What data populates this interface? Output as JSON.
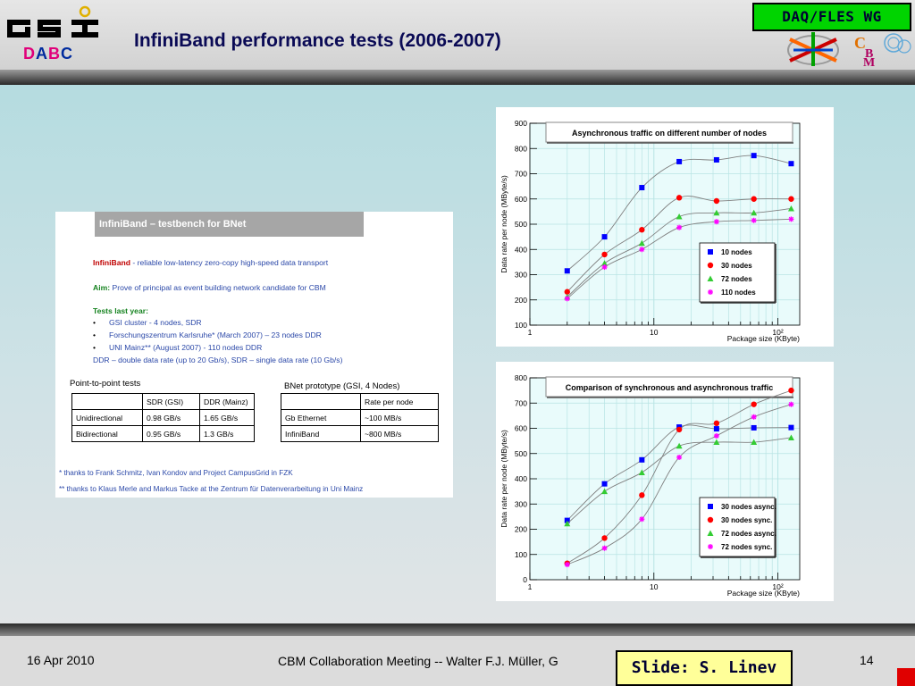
{
  "header": {
    "logo_text": "GSI",
    "dabc": [
      "D",
      "A",
      "B",
      "C"
    ],
    "title": "InfiniBand performance tests (2006-2007)",
    "badge": "DAQ/FLES WG",
    "cbm_logo_text": "CBM"
  },
  "colors": {
    "title": "#0a0a55",
    "badge_bg": "#00d400",
    "dabc_d": "#e0007a",
    "dabc_a": "#002b9e",
    "dabc_b": "#e0007a",
    "dabc_c": "#002b9e",
    "series_blue": "#0000ff",
    "series_red": "#ff0000",
    "series_green": "#33cc33",
    "series_magenta": "#ff00ff"
  },
  "panel": {
    "title": "InfiniBand – testbench for BNet",
    "lines": [
      {
        "lead": "InfiniBand",
        "text": " - reliable low-latency zero-copy high-speed data transport"
      },
      {
        "lead": "Aim:",
        "text": " Prove of principal as event building network candidate for CBM"
      },
      {
        "lead": "Tests last year:",
        "text": ""
      }
    ],
    "bullets": [
      "GSI cluster - 4 nodes, SDR",
      "Forschungszentrum Karlsruhe* (March 2007) – 23 nodes DDR",
      "UNI Mainz** (August 2007) - 110 nodes DDR"
    ],
    "ddr_note": "DDR – double data rate (up to 20 Gb/s), SDR – single data rate (10 Gb/s)",
    "p2p": {
      "title": "Point-to-point tests",
      "headers": [
        "",
        "SDR (GSI)",
        "DDR (Mainz)"
      ],
      "rows": [
        [
          "Unidirectional",
          "0.98 GB/s",
          "1.65 GB/s"
        ],
        [
          "Bidirectional",
          "0.95 GB/s",
          "1.3 GB/s"
        ]
      ]
    },
    "bnet": {
      "title": "BNet prototype (GSI, 4 Nodes)",
      "headers": [
        "",
        "Rate per node"
      ],
      "rows": [
        [
          "Gb Ethernet",
          "~100 MB/s"
        ],
        [
          "InfiniBand",
          "~800 MB/s"
        ]
      ]
    },
    "footnotes": [
      "* thanks to Frank Schmitz, Ivan Kondov and Project CampusGrid in FZK",
      "** thanks to Klaus Merle and Markus Tacke at the Zentrum für Datenverarbeitung in Uni Mainz"
    ]
  },
  "chart_data": [
    {
      "type": "line",
      "title": "Asynchronous traffic on different number of nodes",
      "xlabel": "Package size (KByte)",
      "ylabel": "Data rate per node (MByte/s)",
      "xscale": "log",
      "xlim": [
        1,
        150
      ],
      "ylim": [
        100,
        900
      ],
      "yticks": [
        100,
        200,
        300,
        400,
        500,
        600,
        700,
        800,
        900
      ],
      "xticks": [
        "1",
        "10",
        "10²"
      ],
      "grid": true,
      "legend_position": "bottom-right",
      "x": [
        2,
        4,
        8,
        16,
        32,
        64,
        128
      ],
      "series": [
        {
          "name": "10 nodes",
          "marker": "square",
          "color": "#0000ff",
          "values": [
            315,
            450,
            645,
            748,
            755,
            772,
            740
          ]
        },
        {
          "name": "30 nodes",
          "marker": "circle",
          "color": "#ff0000",
          "values": [
            232,
            380,
            478,
            605,
            592,
            600,
            600
          ]
        },
        {
          "name": "72 nodes",
          "marker": "triangle",
          "color": "#33cc33",
          "values": [
            212,
            345,
            425,
            530,
            545,
            545,
            562
          ]
        },
        {
          "name": "110 nodes",
          "marker": "star",
          "color": "#ff00ff",
          "values": [
            205,
            330,
            400,
            487,
            510,
            515,
            520
          ]
        }
      ]
    },
    {
      "type": "line",
      "title": "Comparison of synchronous and asynchronous traffic",
      "xlabel": "Package size (KByte)",
      "ylabel": "Data rate per node (MByte/s)",
      "xscale": "log",
      "xlim": [
        1,
        150
      ],
      "ylim": [
        0,
        800
      ],
      "yticks": [
        0,
        100,
        200,
        300,
        400,
        500,
        600,
        700,
        800
      ],
      "xticks": [
        "1",
        "10",
        "10²"
      ],
      "grid": true,
      "legend_position": "bottom-right",
      "x": [
        2,
        4,
        8,
        16,
        32,
        64,
        128
      ],
      "series": [
        {
          "name": "30 nodes async.",
          "marker": "square",
          "color": "#0000ff",
          "values": [
            235,
            380,
            475,
            605,
            598,
            602,
            603
          ]
        },
        {
          "name": "30 nodes sync.",
          "marker": "circle",
          "color": "#ff0000",
          "values": [
            65,
            165,
            335,
            595,
            620,
            695,
            750
          ]
        },
        {
          "name": "72 nodes async.",
          "marker": "triangle",
          "color": "#33cc33",
          "values": [
            222,
            350,
            425,
            530,
            545,
            545,
            563
          ]
        },
        {
          "name": "72 nodes sync.",
          "marker": "star",
          "color": "#ff00ff",
          "values": [
            60,
            125,
            240,
            485,
            570,
            645,
            695
          ]
        }
      ]
    }
  ],
  "footer": {
    "date": "16 Apr 2010",
    "center": "CBM Collaboration Meeting -- Walter F.J. Müller, G",
    "page": "14",
    "credit": "Slide: S. Linev"
  }
}
